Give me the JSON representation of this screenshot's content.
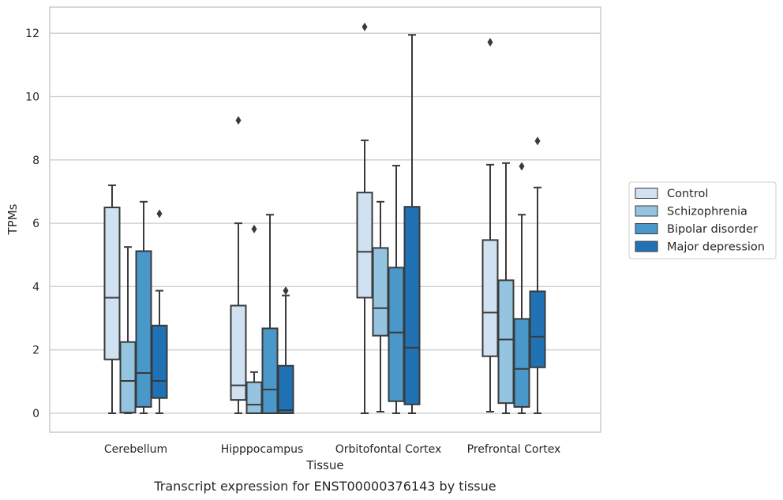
{
  "chart_data": {
    "type": "box",
    "caption": "Transcript expression for ENST00000376143 by tissue",
    "xlabel": "Tissue",
    "ylabel": "TPMs",
    "ylim": [
      -0.6,
      12.8
    ],
    "yticks": [
      0,
      2,
      4,
      6,
      8,
      10,
      12
    ],
    "grid": "horizontal",
    "legend_position": "right",
    "categories": [
      "Cerebellum",
      "Hipppocampus",
      "Orbitofontal Cortex",
      "Prefrontal Cortex"
    ],
    "series": [
      {
        "name": "Control",
        "color": "#d0e1f2",
        "boxes": [
          {
            "whislo": 0,
            "q1": 1.7,
            "med": 3.65,
            "q3": 6.5,
            "whishi": 7.2,
            "fliers": []
          },
          {
            "whislo": 0,
            "q1": 0.42,
            "med": 0.88,
            "q3": 3.4,
            "whishi": 6.0,
            "fliers": [
              9.25
            ]
          },
          {
            "whislo": 0,
            "q1": 3.65,
            "med": 5.1,
            "q3": 6.97,
            "whishi": 8.62,
            "fliers": [
              12.2
            ]
          },
          {
            "whislo": 0.05,
            "q1": 1.8,
            "med": 3.18,
            "q3": 5.47,
            "whishi": 7.85,
            "fliers": [
              11.72
            ]
          }
        ]
      },
      {
        "name": "Schizophrenia",
        "color": "#94c4df",
        "boxes": [
          {
            "whislo": 0,
            "q1": 0.02,
            "med": 1.02,
            "q3": 2.25,
            "whishi": 5.25,
            "fliers": []
          },
          {
            "whislo": 0,
            "q1": 0,
            "med": 0.27,
            "q3": 0.98,
            "whishi": 1.3,
            "fliers": [
              5.82
            ]
          },
          {
            "whislo": 0.05,
            "q1": 2.45,
            "med": 3.32,
            "q3": 5.22,
            "whishi": 6.68,
            "fliers": []
          },
          {
            "whislo": 0,
            "q1": 0.32,
            "med": 2.33,
            "q3": 4.2,
            "whishi": 7.9,
            "fliers": []
          }
        ]
      },
      {
        "name": "Bipolar disorder",
        "color": "#4a98c9",
        "boxes": [
          {
            "whislo": 0,
            "q1": 0.2,
            "med": 1.27,
            "q3": 5.12,
            "whishi": 6.68,
            "fliers": []
          },
          {
            "whislo": 0,
            "q1": 0,
            "med": 0.75,
            "q3": 2.68,
            "whishi": 6.27,
            "fliers": []
          },
          {
            "whislo": 0,
            "q1": 0.38,
            "med": 2.55,
            "q3": 4.6,
            "whishi": 7.82,
            "fliers": []
          },
          {
            "whislo": 0,
            "q1": 0.2,
            "med": 1.4,
            "q3": 2.98,
            "whishi": 6.27,
            "fliers": [
              7.8
            ]
          }
        ]
      },
      {
        "name": "Major depression",
        "color": "#2171b5",
        "boxes": [
          {
            "whislo": 0,
            "q1": 0.48,
            "med": 1.02,
            "q3": 2.77,
            "whishi": 3.87,
            "fliers": [
              6.3
            ]
          },
          {
            "whislo": 0,
            "q1": 0,
            "med": 0.1,
            "q3": 1.5,
            "whishi": 3.72,
            "fliers": [
              3.87
            ]
          },
          {
            "whislo": 0,
            "q1": 0.28,
            "med": 2.07,
            "q3": 6.52,
            "whishi": 11.95,
            "fliers": []
          },
          {
            "whislo": 0,
            "q1": 1.45,
            "med": 2.42,
            "q3": 3.85,
            "whishi": 7.13,
            "fliers": [
              8.6
            ]
          }
        ]
      }
    ]
  }
}
